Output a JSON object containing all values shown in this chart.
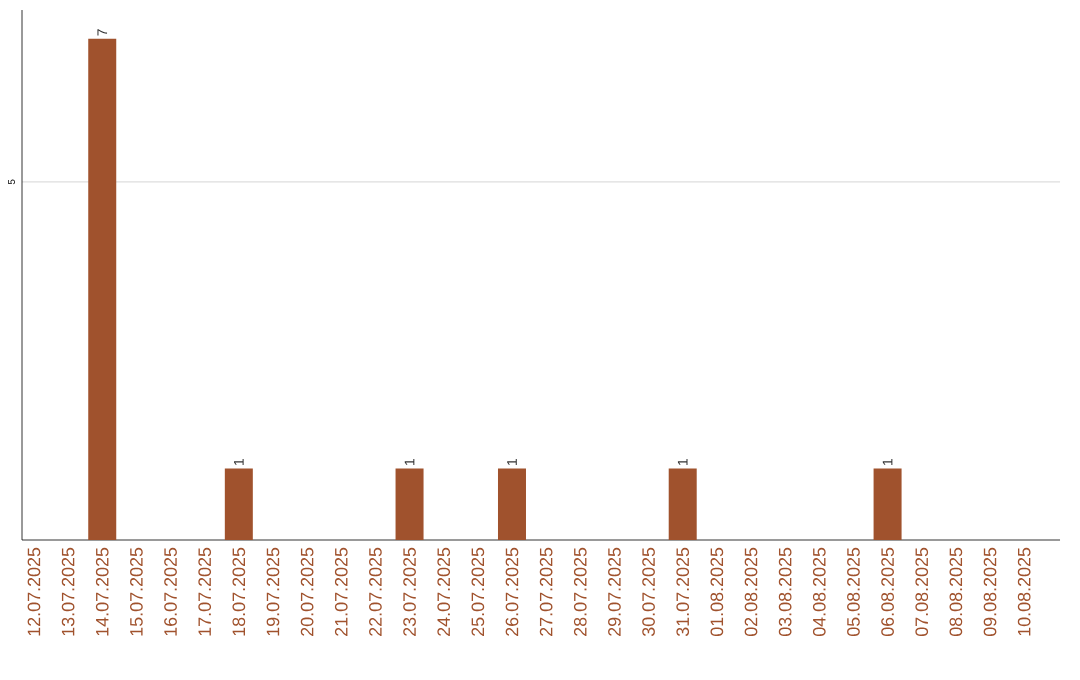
{
  "chart_data": {
    "type": "bar",
    "categories": [
      "12.07.2025",
      "13.07.2025",
      "14.07.2025",
      "15.07.2025",
      "16.07.2025",
      "17.07.2025",
      "18.07.2025",
      "19.07.2025",
      "20.07.2025",
      "21.07.2025",
      "22.07.2025",
      "23.07.2025",
      "24.07.2025",
      "25.07.2025",
      "26.07.2025",
      "27.07.2025",
      "28.07.2025",
      "29.07.2025",
      "30.07.2025",
      "31.07.2025",
      "01.08.2025",
      "02.08.2025",
      "03.08.2025",
      "04.08.2025",
      "05.08.2025",
      "06.08.2025",
      "07.08.2025",
      "08.08.2025",
      "09.08.2025",
      "10.08.2025"
    ],
    "values": [
      0,
      0,
      7,
      0,
      0,
      0,
      1,
      0,
      0,
      0,
      0,
      1,
      0,
      0,
      1,
      0,
      0,
      0,
      0,
      1,
      0,
      0,
      0,
      0,
      0,
      1,
      0,
      0,
      0,
      0
    ],
    "value_labels": [
      null,
      null,
      "7",
      null,
      null,
      null,
      "1",
      null,
      null,
      null,
      null,
      "1",
      null,
      null,
      "1",
      null,
      null,
      null,
      null,
      "1",
      null,
      null,
      null,
      null,
      null,
      "1",
      null,
      null,
      null,
      null
    ],
    "color": "#a0522d",
    "ylim": [
      0,
      7.4
    ],
    "yticks": [
      5
    ],
    "grid": "y"
  }
}
